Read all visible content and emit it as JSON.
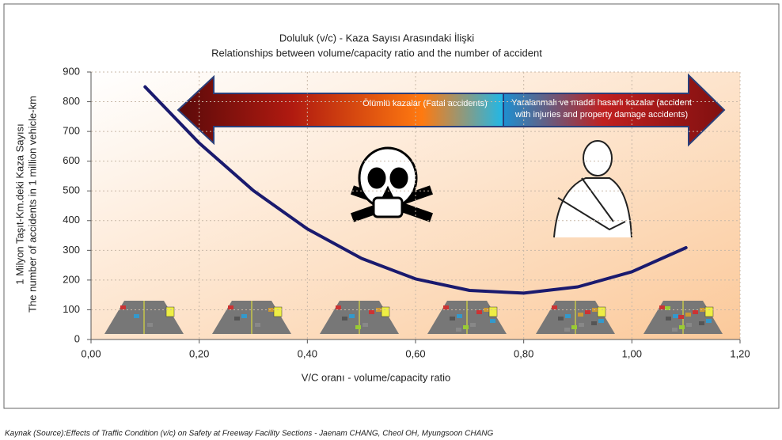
{
  "chart_data": {
    "type": "line",
    "title": [
      "Doluluk (v/c)  - Kaza Sayısı Arasındaki İlişki",
      "Relationships  between  volume/capacity ratio and the number of accident"
    ],
    "x_label": "V/C oranı - volume/capacity ratio",
    "y_label": [
      "1 Milyon Taşıt-Km.deki  Kaza Sayısı",
      "The  number of accidents in 1 million vehicle-km"
    ],
    "x": [
      0.1,
      0.2,
      0.3,
      0.4,
      0.5,
      0.6,
      0.7,
      0.8,
      0.9,
      1.0,
      1.1
    ],
    "series": [
      {
        "color": "#1a1a6e",
        "values": [
          850,
          661,
          501,
          372,
          273,
          204,
          165,
          156,
          177,
          228,
          309
        ]
      }
    ],
    "xlim": [
      0,
      1.2
    ],
    "xticks": [
      {
        "value": 0,
        "label": "0,00"
      },
      {
        "value": 0.2,
        "label": "0,20"
      },
      {
        "value": 0.4,
        "label": "0,40"
      },
      {
        "value": 0.6,
        "label": "0,60"
      },
      {
        "value": 0.8,
        "label": "0,80"
      },
      {
        "value": 1.0,
        "label": "1,00"
      },
      {
        "value": 1.2,
        "label": "1,20"
      }
    ],
    "ylim": [
      0,
      900
    ],
    "yticks": [
      0,
      100,
      200,
      300,
      400,
      500,
      600,
      700,
      800,
      900
    ],
    "grid": true,
    "annotations": [
      "Ölümlü kazalar (Fatal accidents)",
      "Yaralanmalı ve maddi hasarlı kazalar (accident",
      "with injuries and property damage accidents)"
    ],
    "source": "Kaynak (Source):Effects of Traffic Condition (v/c) on Safety at Freeway Facility Sections - Jaenam CHANG, Cheol OH, Myungsoon CHANG"
  }
}
